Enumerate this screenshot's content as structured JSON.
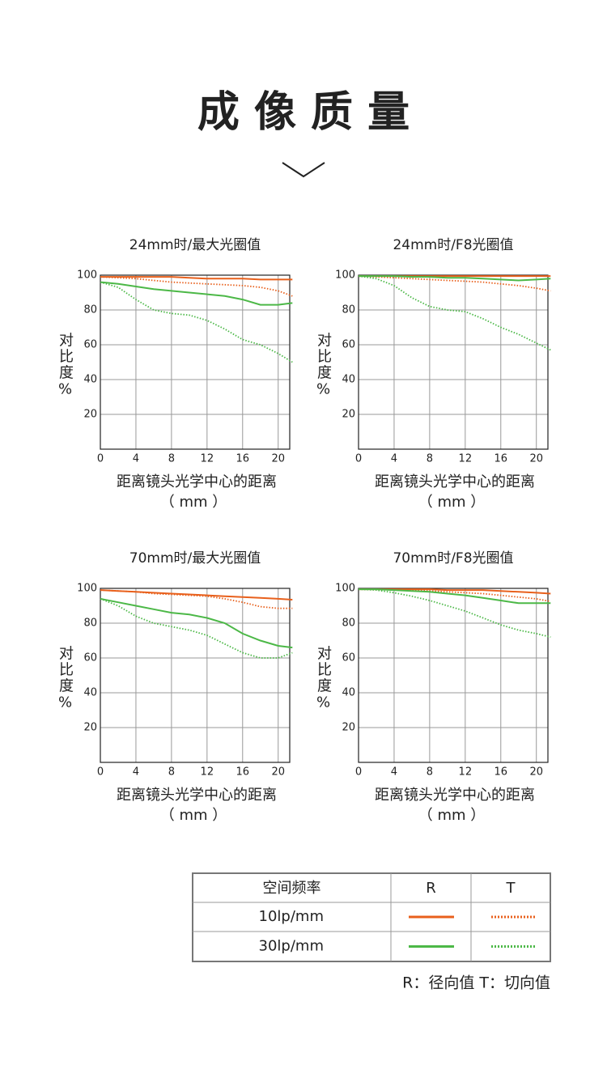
{
  "title": "成 像 质 量",
  "chart_data": [
    {
      "type": "line",
      "title": "24mm时/最大光圈值",
      "ylabel": "对比度%",
      "xlabel": "距离镜头光学中心的距离",
      "xlabel_unit": "（ mm ）",
      "x": [
        0,
        2,
        4,
        6,
        8,
        10,
        12,
        14,
        16,
        18,
        20,
        21.6
      ],
      "xlim": [
        0,
        21.3
      ],
      "xticks": [
        0,
        4,
        8,
        12,
        16,
        20
      ],
      "ylim": [
        0,
        100
      ],
      "yticks": [
        20,
        40,
        60,
        80,
        100
      ],
      "grid": true,
      "series": [
        {
          "color": "#e8601c",
          "style": "solid",
          "values": [
            99,
            99,
            99,
            99,
            99,
            98.5,
            98,
            98,
            98,
            97.5,
            97.5,
            97.5
          ]
        },
        {
          "color": "#e8601c",
          "style": "dotted",
          "values": [
            99,
            98.5,
            98,
            97,
            96,
            95.5,
            95,
            94.5,
            94,
            93,
            91,
            88
          ]
        },
        {
          "color": "#4cb847",
          "style": "solid",
          "values": [
            96,
            95,
            93.5,
            92,
            91,
            90,
            89,
            88,
            86,
            83,
            83,
            84
          ]
        },
        {
          "color": "#4cb847",
          "style": "dotted",
          "values": [
            96,
            93,
            86,
            80,
            78,
            77,
            74,
            69,
            63,
            60,
            55,
            50
          ]
        }
      ]
    },
    {
      "type": "line",
      "title": "24mm时/F8光圈值",
      "ylabel": "对比度%",
      "xlabel": "距离镜头光学中心的距离",
      "xlabel_unit": "（ mm ）",
      "x": [
        0,
        2,
        4,
        6,
        8,
        10,
        12,
        14,
        16,
        18,
        20,
        21.6
      ],
      "xlim": [
        0,
        21.3
      ],
      "xticks": [
        0,
        4,
        8,
        12,
        16,
        20
      ],
      "ylim": [
        0,
        100
      ],
      "yticks": [
        20,
        40,
        60,
        80,
        100
      ],
      "grid": true,
      "series": [
        {
          "color": "#e8601c",
          "style": "solid",
          "values": [
            99.5,
            99.5,
            99.5,
            99.5,
            99.5,
            99.5,
            99.5,
            99.5,
            99.5,
            99.5,
            99.5,
            99.5
          ]
        },
        {
          "color": "#e8601c",
          "style": "dotted",
          "values": [
            99.5,
            99,
            98.5,
            98,
            97.5,
            97,
            96.5,
            96,
            95,
            94,
            92.5,
            91
          ]
        },
        {
          "color": "#4cb847",
          "style": "solid",
          "values": [
            99.5,
            99.5,
            99.5,
            99,
            99,
            98.5,
            98.5,
            98,
            97.5,
            97,
            97.5,
            98
          ]
        },
        {
          "color": "#4cb847",
          "style": "dotted",
          "values": [
            99.5,
            98,
            94,
            87,
            82,
            80,
            79,
            75,
            70,
            66,
            61,
            57
          ]
        }
      ]
    },
    {
      "type": "line",
      "title": "70mm时/最大光圈值",
      "ylabel": "对比度%",
      "xlabel": "距离镜头光学中心的距离",
      "xlabel_unit": "（ mm ）",
      "x": [
        0,
        2,
        4,
        6,
        8,
        10,
        12,
        14,
        16,
        18,
        20,
        21.6
      ],
      "xlim": [
        0,
        21.3
      ],
      "xticks": [
        0,
        4,
        8,
        12,
        16,
        20
      ],
      "ylim": [
        0,
        100
      ],
      "yticks": [
        20,
        40,
        60,
        80,
        100
      ],
      "grid": true,
      "series": [
        {
          "color": "#e8601c",
          "style": "solid",
          "values": [
            99,
            98.5,
            98,
            97.5,
            97,
            96.5,
            96,
            95.5,
            95,
            94.5,
            94,
            93.5
          ]
        },
        {
          "color": "#e8601c",
          "style": "dotted",
          "values": [
            99,
            98.5,
            98,
            97,
            96.5,
            96,
            95.5,
            94,
            92,
            89.5,
            88.5,
            88.5
          ]
        },
        {
          "color": "#4cb847",
          "style": "solid",
          "values": [
            94,
            92,
            90,
            88,
            86,
            85,
            83,
            80,
            74,
            70,
            67,
            66
          ]
        },
        {
          "color": "#4cb847",
          "style": "dotted",
          "values": [
            94,
            90,
            84,
            80,
            78,
            76,
            73,
            68,
            63,
            60,
            60,
            63
          ]
        }
      ]
    },
    {
      "type": "line",
      "title": "70mm时/F8光圈值",
      "ylabel": "对比度%",
      "xlabel": "距离镜头光学中心的距离",
      "xlabel_unit": "（ mm ）",
      "x": [
        0,
        2,
        4,
        6,
        8,
        10,
        12,
        14,
        16,
        18,
        20,
        21.6
      ],
      "xlim": [
        0,
        21.3
      ],
      "xticks": [
        0,
        4,
        8,
        12,
        16,
        20
      ],
      "ylim": [
        0,
        100
      ],
      "yticks": [
        20,
        40,
        60,
        80,
        100
      ],
      "grid": true,
      "series": [
        {
          "color": "#e8601c",
          "style": "solid",
          "values": [
            99.5,
            99.5,
            99.5,
            99.5,
            99.5,
            99,
            99,
            99,
            98.5,
            98,
            97.5,
            97
          ]
        },
        {
          "color": "#e8601c",
          "style": "dotted",
          "values": [
            99.5,
            99.5,
            99,
            99,
            98.5,
            98,
            97.5,
            97,
            96,
            95,
            94,
            92.5
          ]
        },
        {
          "color": "#4cb847",
          "style": "solid",
          "values": [
            99.5,
            99.5,
            99,
            98.5,
            98,
            97,
            96,
            94.5,
            93,
            91.5,
            91.5,
            91.5
          ]
        },
        {
          "color": "#4cb847",
          "style": "dotted",
          "values": [
            99.5,
            99,
            97.5,
            95.5,
            93,
            90,
            87,
            83,
            79,
            76,
            74,
            72
          ]
        }
      ]
    }
  ],
  "legend_table": {
    "header": [
      "空间频率",
      "R",
      "T"
    ],
    "rows": [
      {
        "label": "10lp/mm",
        "color": "#e8601c"
      },
      {
        "label": "30lp/mm",
        "color": "#4cb847"
      }
    ]
  },
  "note": "R：径向值  T：切向值"
}
